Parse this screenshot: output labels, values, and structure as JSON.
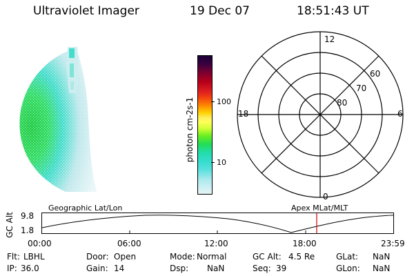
{
  "header": {
    "title": "Ultraviolet Imager",
    "date": "19 Dec 07",
    "time": "18:51:43 UT"
  },
  "colorbar": {
    "unit_label": "photon cm-2s-1",
    "ticks": [
      "100",
      "10"
    ]
  },
  "polar_plot": {
    "mlt_labels": {
      "top": "12",
      "left": "18",
      "right": "6",
      "bottom": "0"
    },
    "lat_labels": [
      "60",
      "70",
      "80"
    ]
  },
  "orbit_plot": {
    "y_axis_label": "GC Alt",
    "y_ticks": [
      "9.8",
      "1.8"
    ],
    "left_title": "Geographic Lat/Lon",
    "right_title": "Apex MLat/MLT",
    "x_ticks": [
      "00:00",
      "06:00",
      "12:00",
      "18:00",
      "23:59"
    ],
    "current_time_marker_color": "#cc0000"
  },
  "info": {
    "row1": [
      {
        "key": "Flt:",
        "value": "LBHL"
      },
      {
        "key": "Door:",
        "value": "Open"
      },
      {
        "key": "Mode:",
        "value": "Normal"
      },
      {
        "key": "GC Alt:",
        "value": "4.5 Re"
      },
      {
        "key": "GLat:",
        "value": "NaN"
      }
    ],
    "row2": [
      {
        "key": "IP:",
        "value": "36.0"
      },
      {
        "key": "Gain:",
        "value": "14"
      },
      {
        "key": "Dsp:",
        "value": "NaN"
      },
      {
        "key": "Seq:",
        "value": "39"
      },
      {
        "key": "GLon:",
        "value": "NaN"
      }
    ]
  },
  "colors": {
    "image_green": "#33dd44",
    "image_cyan": "#44ddcc",
    "image_pale": "#ccecee"
  }
}
